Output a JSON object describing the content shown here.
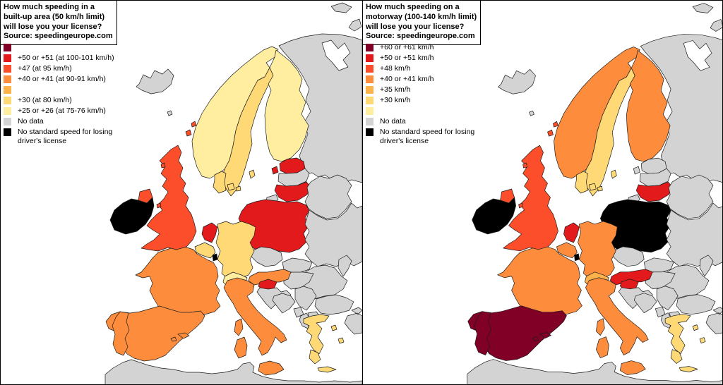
{
  "palette": {
    "band1": "#800026",
    "band2": "#E31A1C",
    "band3": "#FC4E2A",
    "band4": "#FD8D3C",
    "band5": "#FEB24C",
    "band6": "#FED976",
    "band7": "#FFEDA0",
    "no_data": "#D3D3D3",
    "no_standard": "#000000",
    "sea": "#FFFFFF",
    "border": "#1c1c1c"
  },
  "panels": [
    {
      "id": "built-up-area",
      "title_lines": [
        "How much speeding in a",
        "built-up area (50 km/h limit)",
        "will lose you your license?",
        "Source: speedingeurope.com"
      ],
      "legend": [
        {
          "key": "band1",
          "label": ""
        },
        {
          "key": "band2",
          "label": "+50 or +51 (at 100-101 km/h)"
        },
        {
          "key": "band3",
          "label": "+47 (at 95 km/h)"
        },
        {
          "key": "band4",
          "label": "+40 or +41 (at 90-91 km/h)"
        },
        {
          "key": "band5",
          "label": ""
        },
        {
          "key": "band6",
          "label": "+30 (at 80 km/h)"
        },
        {
          "key": "band7",
          "label": "+25 or +26 (at 75-76 km/h)"
        },
        {
          "key": "no_data",
          "label": "No data"
        },
        {
          "key": "no_standard",
          "label": "No standard speed for losing driver's license"
        }
      ],
      "countries": {
        "iceland": "no_data",
        "norway": "band7",
        "sweden": "band6",
        "finland": "band7",
        "estonia": "band2",
        "latvia": "no_data",
        "lithuania": "band2",
        "poland": "band2",
        "denmark": "band6",
        "germany": "band6",
        "netherlands": "band2",
        "belgium": "band6",
        "luxembourg": "no_standard",
        "uk": "band3",
        "ireland": "no_standard",
        "france": "band4",
        "spain": "band4",
        "portugal": "band4",
        "switzerland": "band7",
        "austria": "band4",
        "slovenia": "band2",
        "italy": "band4",
        "greece": "band6",
        "czech": "no_data",
        "slovakia": "no_data",
        "hungary": "no_data",
        "croatia": "no_data",
        "bosnia": "no_data",
        "serbia": "no_data",
        "montenegro": "no_data",
        "albania": "no_data",
        "macedonia": "no_data",
        "bulgaria": "no_data",
        "romania": "no_data",
        "moldova": "no_data",
        "ukraine": "no_data",
        "belarus": "no_data",
        "russia": "no_data",
        "kaliningrad": "no_data",
        "turkey": "no_data",
        "africa": "no_data",
        "faroe": "no_data"
      }
    },
    {
      "id": "motorway",
      "title_lines": [
        "How much speeding on a",
        "motorway (100-140 km/h limit)",
        "will lose you your license?",
        "Source: speedingeurope.com"
      ],
      "legend": [
        {
          "key": "band1",
          "label": "+60 or +61 km/h"
        },
        {
          "key": "band2",
          "label": "+50 or +51 km/h"
        },
        {
          "key": "band3",
          "label": "+48 km/h"
        },
        {
          "key": "band4",
          "label": "+40 or +41 km/h"
        },
        {
          "key": "band5",
          "label": "+35 km/h"
        },
        {
          "key": "band6",
          "label": "+30 km/h"
        },
        {
          "key": "band7",
          "label": ""
        },
        {
          "key": "no_data",
          "label": "No data"
        },
        {
          "key": "no_standard",
          "label": "No standard speed for losing driver's license"
        }
      ],
      "countries": {
        "iceland": "no_data",
        "norway": "band4",
        "sweden": "band6",
        "finland": "band4",
        "estonia": "no_data",
        "latvia": "no_data",
        "lithuania": "band2",
        "poland": "no_standard",
        "denmark": "band6",
        "germany": "band4",
        "netherlands": "band2",
        "belgium": "band4",
        "luxembourg": "no_standard",
        "uk": "band3",
        "ireland": "no_standard",
        "france": "band4",
        "spain": "band1",
        "portugal": "band1",
        "switzerland": "band5",
        "austria": "band2",
        "slovenia": "band2",
        "italy": "band4",
        "greece": "band6",
        "czech": "no_data",
        "slovakia": "no_data",
        "hungary": "no_data",
        "croatia": "no_data",
        "bosnia": "no_data",
        "serbia": "no_data",
        "montenegro": "no_data",
        "albania": "no_data",
        "macedonia": "no_data",
        "bulgaria": "no_data",
        "romania": "no_data",
        "moldova": "no_data",
        "ukraine": "no_data",
        "belarus": "no_data",
        "russia": "no_data",
        "kaliningrad": "no_data",
        "turkey": "no_data",
        "africa": "no_data",
        "faroe": "no_data"
      }
    }
  ]
}
